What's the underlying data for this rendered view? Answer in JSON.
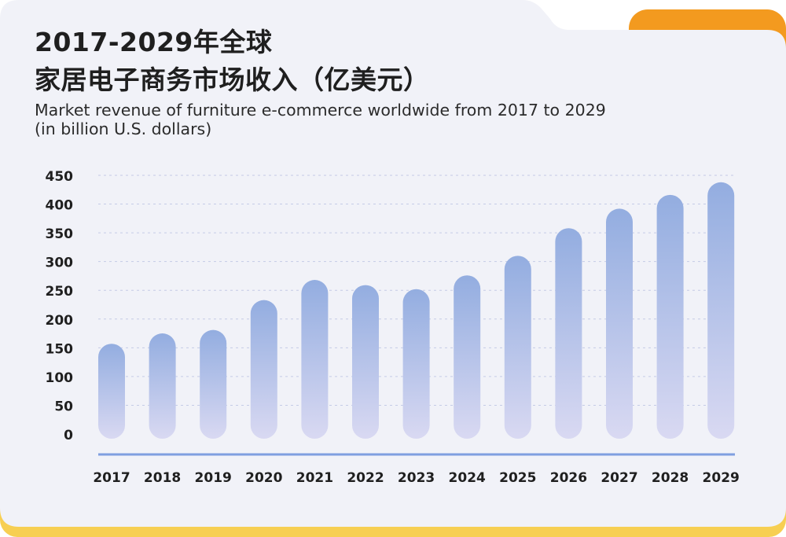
{
  "colors": {
    "card_bg": "#f1f2f8",
    "accent_orange": "#f39a1f",
    "accent_yellow": "#f7cf52",
    "bar_top": "#93ade0",
    "bar_bottom": "#d9d9f2",
    "baseline": "#7f9fe0",
    "grid": "#c5cbe6",
    "text": "#1f1f1f"
  },
  "header": {
    "title_line1": "2017-2029年全球",
    "title_line2": "家居电子商务市场收入（亿美元）",
    "subtitle_line1": "Market revenue of furniture e-commerce worldwide from 2017 to 2029",
    "subtitle_line2": "(in billion U.S. dollars)"
  },
  "chart_data": {
    "type": "bar",
    "title": "2017-2029年全球家居电子商务市场收入（亿美元）",
    "subtitle": "Market revenue of furniture e-commerce worldwide from 2017 to 2029 (in billion U.S. dollars)",
    "categories": [
      "2017",
      "2018",
      "2019",
      "2020",
      "2021",
      "2022",
      "2023",
      "2024",
      "2025",
      "2026",
      "2027",
      "2028",
      "2029"
    ],
    "values": [
      157,
      175,
      181,
      233,
      268,
      259,
      252,
      276,
      310,
      358,
      392,
      416,
      438
    ],
    "ylim": [
      0,
      450
    ],
    "yticks": [
      0,
      50,
      100,
      150,
      200,
      250,
      300,
      350,
      400,
      450
    ],
    "grid": true,
    "legend": "none"
  }
}
